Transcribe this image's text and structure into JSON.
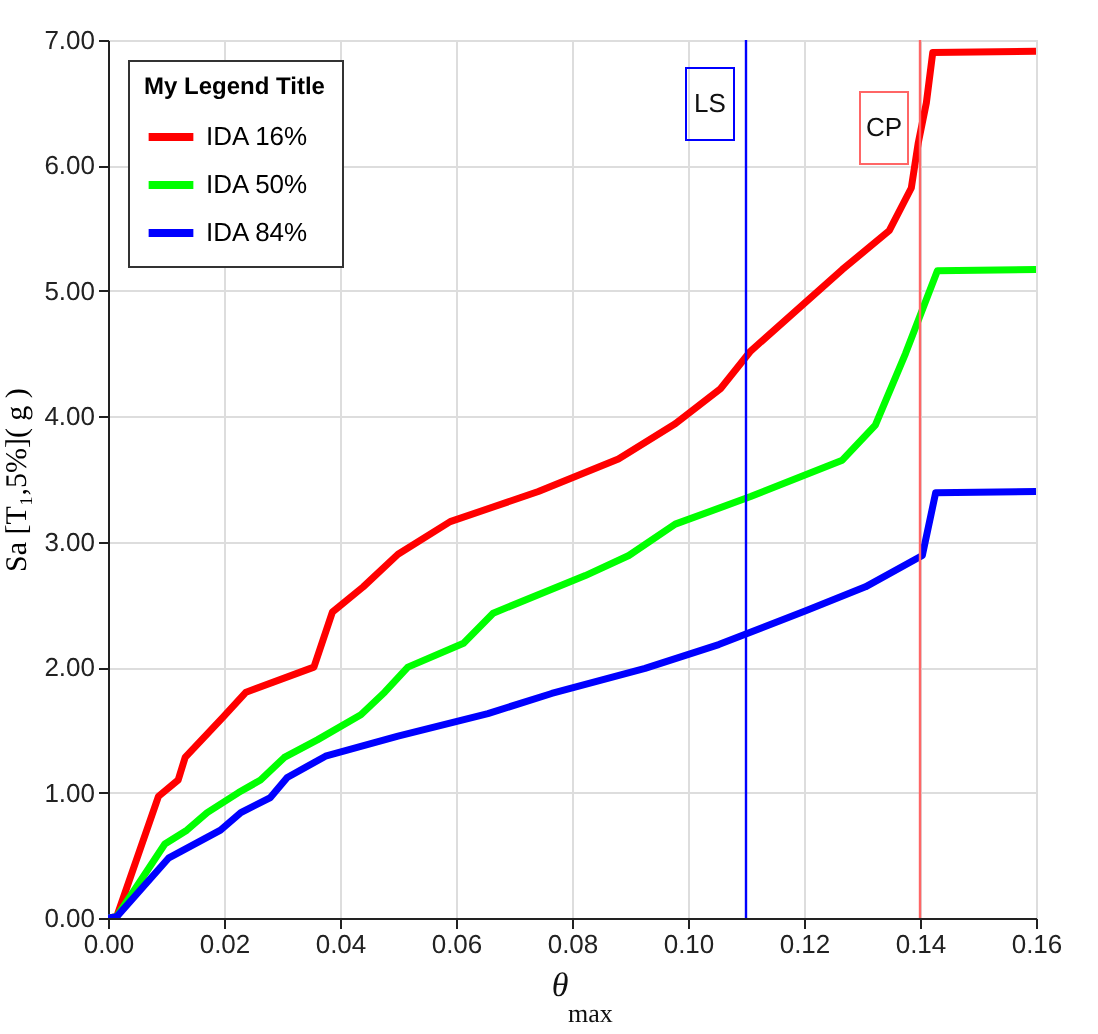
{
  "chart_data": {
    "type": "line",
    "xlabel": "θ$_{max}$",
    "ylabel": "Sa [T₁,5%]( g )",
    "legend_title": "My Legend Title",
    "xlim": [
      0,
      0.16
    ],
    "xticks": [
      {
        "value": 0,
        "label": "0.00"
      },
      0.02,
      0.04,
      0.06,
      0.08,
      {
        "value": 0.1,
        "label": "0.10"
      },
      0.12,
      0.14,
      0.16
    ],
    "ylim": [
      0,
      7
    ],
    "yticks": [
      {
        "value": 0,
        "label": "0.00"
      },
      {
        "value": 1,
        "label": "1.00"
      },
      {
        "value": 2,
        "label": "2.00"
      },
      {
        "value": 3,
        "label": "3.00"
      },
      {
        "value": 4,
        "label": "4.00"
      },
      {
        "value": 5,
        "label": "5.00"
      },
      {
        "value": 6,
        "label": "6.00"
      },
      {
        "value": 7,
        "label": "7.00"
      }
    ],
    "grid": true,
    "legend": "top left",
    "marker": "none",
    "line_style": "solid",
    "series": [
      {
        "name": "IDA 16%",
        "color": "#ff0000",
        "x": [
          0,
          0.0015,
          0.0087,
          0.0121,
          0.0133,
          0.0198,
          0.0238,
          0.0355,
          0.0387,
          0.044,
          0.05,
          0.059,
          0.0742,
          0.088,
          0.0978,
          0.1056,
          0.1108,
          0.1266,
          0.1347,
          0.1385,
          0.1397,
          0.1411,
          0.1422,
          0.16
        ],
        "values": [
          0,
          0.01,
          0.97,
          1.1,
          1.28,
          1.6,
          1.8,
          2.0,
          2.44,
          2.64,
          2.9,
          3.16,
          3.4,
          3.66,
          3.94,
          4.22,
          4.52,
          5.17,
          5.48,
          5.82,
          6.18,
          6.5,
          6.9,
          6.91
        ]
      },
      {
        "name": "IDA 50%",
        "color": "#00ff00",
        "x": [
          0,
          0.0015,
          0.0098,
          0.0136,
          0.0171,
          0.0225,
          0.0263,
          0.0304,
          0.0361,
          0.0436,
          0.0477,
          0.0517,
          0.0613,
          0.0664,
          0.0823,
          0.0898,
          0.0978,
          0.1108,
          0.1266,
          0.1323,
          0.1375,
          0.143,
          0.16
        ],
        "values": [
          0,
          0.01,
          0.59,
          0.7,
          0.84,
          1.0,
          1.1,
          1.28,
          1.42,
          1.62,
          1.8,
          2.0,
          2.19,
          2.43,
          2.73,
          2.89,
          3.14,
          3.36,
          3.65,
          3.93,
          4.5,
          5.16,
          5.17
        ]
      },
      {
        "name": "IDA 84%",
        "color": "#0000ff",
        "x": [
          0,
          0.0015,
          0.0105,
          0.0194,
          0.0229,
          0.028,
          0.0309,
          0.0375,
          0.05,
          0.0655,
          0.0765,
          0.0926,
          0.1053,
          0.1203,
          0.1306,
          0.1404,
          0.1427,
          0.16
        ],
        "values": [
          0,
          0.01,
          0.48,
          0.7,
          0.84,
          0.96,
          1.12,
          1.29,
          1.45,
          1.63,
          1.79,
          1.99,
          2.18,
          2.45,
          2.64,
          2.89,
          3.39,
          3.4
        ]
      }
    ],
    "ref_lines": [
      {
        "axis": "x",
        "value": 0.11,
        "label": "LS",
        "color": "#0000ff",
        "line_style": "solid"
      },
      {
        "axis": "x",
        "value": 0.14,
        "label": "CP",
        "color": "#ff6666",
        "line_style": "solid"
      }
    ]
  }
}
